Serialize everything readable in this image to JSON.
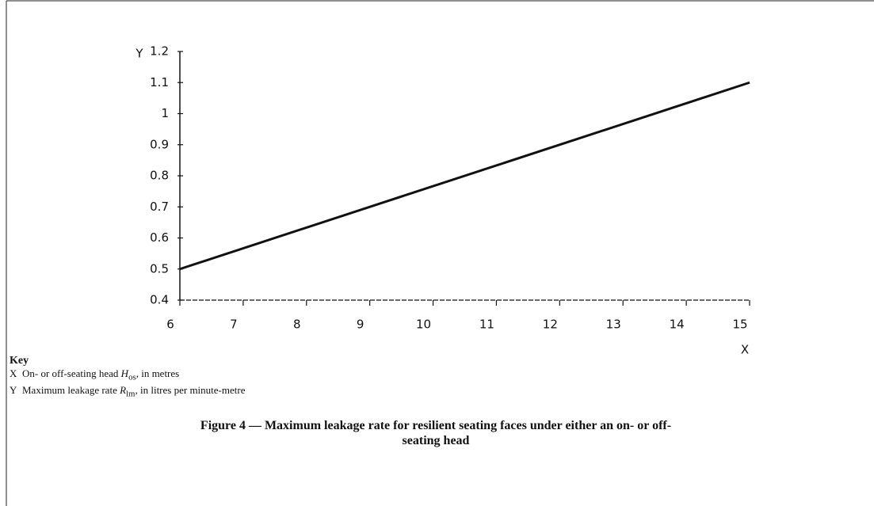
{
  "chart_data": {
    "type": "line",
    "x_label": "X",
    "y_label": "Y",
    "x": [
      6,
      15
    ],
    "series": [
      {
        "name": null,
        "color": "#111111",
        "values": [
          0.5,
          1.1
        ]
      }
    ],
    "xlim": [
      6,
      15
    ],
    "xticks": [
      6,
      7,
      8,
      9,
      10,
      11,
      12,
      13,
      14,
      15
    ],
    "ylim": [
      0.4,
      1.2
    ],
    "yticks": [
      0.4,
      0.5,
      0.6,
      0.7,
      0.8,
      0.9,
      1,
      1.1,
      1.2
    ],
    "grid": false
  },
  "key": {
    "title": "Key",
    "items": [
      {
        "symbol": "X",
        "parts": [
          "On- or off-seating head ",
          "H",
          "os",
          ", in metres"
        ]
      },
      {
        "symbol": "Y",
        "parts": [
          "Maximum leakage rate ",
          "R",
          "lm",
          ", in litres per minute-metre"
        ]
      }
    ]
  },
  "caption": "Figure 4 — Maximum leakage rate for resilient seating faces under either an on- or off-seating head"
}
